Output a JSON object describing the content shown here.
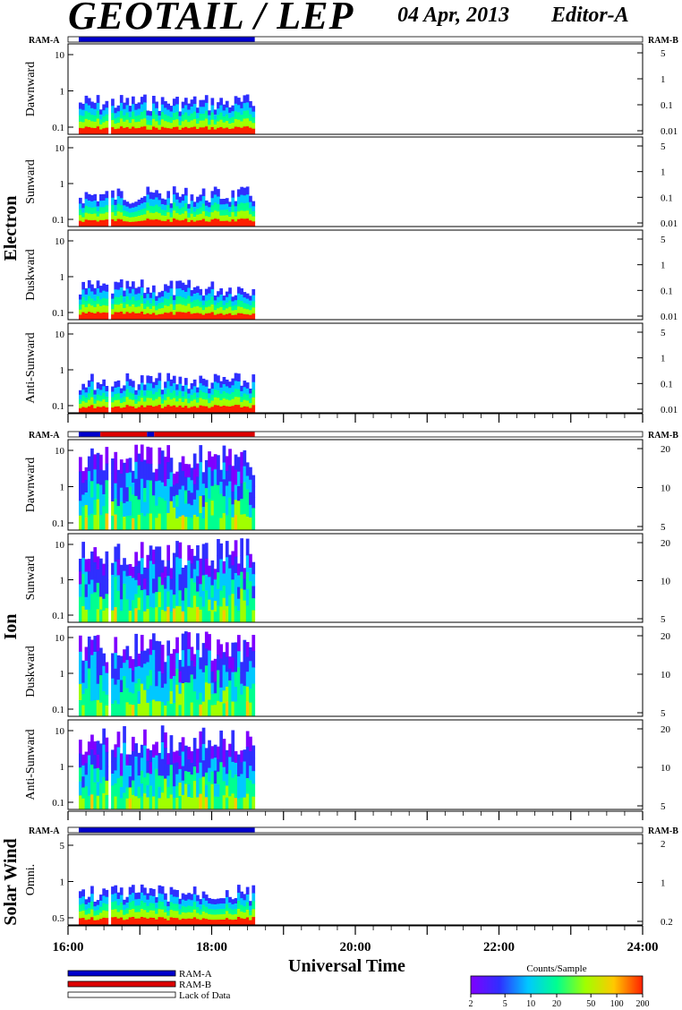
{
  "header": {
    "title": "GEOTAIL / LEP",
    "date": "04 Apr, 2013",
    "editor": "Editor-A"
  },
  "x_axis": {
    "label": "Universal Time",
    "range": [
      16,
      24
    ],
    "ticks": [
      "16:00",
      "18:00",
      "20:00",
      "22:00",
      "24:00"
    ]
  },
  "ram_labels": {
    "left": "RAM-A",
    "right": "RAM-B"
  },
  "groups": [
    {
      "name": "Electron",
      "panels": [
        "Dawnward",
        "Sunward",
        "Duskward",
        "Anti-Sunward"
      ],
      "left_ticks": [
        "10",
        "1",
        "0.1"
      ],
      "right_ticks": [
        "5",
        "1",
        "0.1",
        "0.01"
      ]
    },
    {
      "name": "Ion",
      "panels": [
        "Dawnward",
        "Sunward",
        "Duskward",
        "Anti-Sunward"
      ],
      "left_ticks": [
        "10",
        "1",
        "0.1"
      ],
      "right_ticks": [
        "20",
        "10",
        "5"
      ]
    },
    {
      "name": "Solar Wind",
      "panels": [
        "Omni."
      ],
      "left_ticks": [
        "5",
        "1",
        "0.5"
      ],
      "right_ticks": [
        "2",
        "1",
        "0.2"
      ]
    }
  ],
  "legend": {
    "items": [
      {
        "label": "RAM-A",
        "color": "#0000cc"
      },
      {
        "label": "RAM-B",
        "color": "#dd0000"
      },
      {
        "label": "Lack of Data",
        "color": "#ffffff"
      }
    ]
  },
  "colorbar": {
    "title": "Counts/Sample",
    "ticks": [
      "2",
      "5",
      "10",
      "20",
      "50",
      "100",
      "200"
    ],
    "colors": [
      "#7f00ff",
      "#2f2fff",
      "#00c8ff",
      "#00ff90",
      "#a0ff00",
      "#ffc800",
      "#ff2000"
    ]
  },
  "chart_data": {
    "type": "heatmap",
    "title": "GEOTAIL / LEP",
    "xlabel": "Universal Time",
    "xlim": [
      16,
      24
    ],
    "data_coverage_ut": [
      16.15,
      18.6
    ],
    "ram_bars": {
      "electron": [
        {
          "state": "RAM-A",
          "from": 16.15,
          "to": 18.6
        }
      ],
      "ion": [
        {
          "state": "RAM-A",
          "from": 16.15,
          "to": 16.45
        },
        {
          "state": "RAM-B",
          "from": 16.45,
          "to": 17.1
        },
        {
          "state": "RAM-A",
          "from": 17.1,
          "to": 17.2
        },
        {
          "state": "RAM-B",
          "from": 17.2,
          "to": 18.6
        }
      ],
      "solar_wind": [
        {
          "state": "RAM-A",
          "from": 16.15,
          "to": 18.6
        }
      ]
    }
  }
}
